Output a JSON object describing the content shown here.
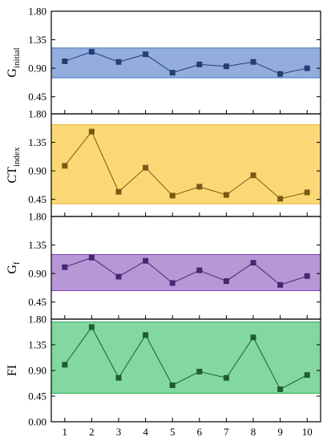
{
  "chart_data": [
    {
      "type": "line",
      "ylabel": "G",
      "ylabel_sub": "initial",
      "ylim": [
        0.45,
        1.8
      ],
      "yticks": [
        "1.80",
        "1.35",
        "0.90",
        "0.45"
      ],
      "band": [
        0.75,
        1.22
      ],
      "band_fill": "#93aede",
      "band_stroke": "#4472c4",
      "marker_color": "#243d72",
      "x": [
        1,
        2,
        3,
        4,
        5,
        6,
        7,
        8,
        9,
        10
      ],
      "values": [
        1.01,
        1.16,
        1.0,
        1.12,
        0.83,
        0.96,
        0.93,
        1.0,
        0.81,
        0.9
      ]
    },
    {
      "type": "line",
      "ylabel": "CT",
      "ylabel_sub": "index",
      "ylim": [
        0.45,
        1.8
      ],
      "yticks": [
        "1.80",
        "1.35",
        "0.90",
        "0.45"
      ],
      "band": [
        0.38,
        1.63
      ],
      "band_fill": "#fbd875",
      "band_stroke": "#e8b638",
      "marker_color": "#7a5a12",
      "x": [
        1,
        2,
        3,
        4,
        5,
        6,
        7,
        8,
        9,
        10
      ],
      "values": [
        0.98,
        1.52,
        0.57,
        0.95,
        0.51,
        0.65,
        0.52,
        0.83,
        0.46,
        0.56
      ]
    },
    {
      "type": "line",
      "ylabel": "G",
      "ylabel_sub": "f",
      "ylim": [
        0.45,
        1.8
      ],
      "yticks": [
        "1.80",
        "1.35",
        "0.90",
        "0.45"
      ],
      "band": [
        0.63,
        1.2
      ],
      "band_fill": "#b797d6",
      "band_stroke": "#7b3fb5",
      "marker_color": "#4b2473",
      "x": [
        1,
        2,
        3,
        4,
        5,
        6,
        7,
        8,
        9,
        10
      ],
      "values": [
        1.0,
        1.15,
        0.85,
        1.1,
        0.75,
        0.95,
        0.78,
        1.07,
        0.72,
        0.86
      ]
    },
    {
      "type": "line",
      "ylabel": "FI",
      "ylabel_sub": "",
      "ylim": [
        0.0,
        1.8
      ],
      "yticks": [
        "1.80",
        "1.35",
        "0.90",
        "0.45",
        "0.00"
      ],
      "xticks": [
        "1",
        "2",
        "3",
        "4",
        "5",
        "6",
        "7",
        "8",
        "9",
        "10"
      ],
      "band": [
        0.5,
        1.75
      ],
      "band_fill": "#82d8a0",
      "band_stroke": "#2ea84f",
      "marker_color": "#1f5c32",
      "x": [
        1,
        2,
        3,
        4,
        5,
        6,
        7,
        8,
        9,
        10
      ],
      "values": [
        1.0,
        1.66,
        0.77,
        1.52,
        0.64,
        0.88,
        0.77,
        1.48,
        0.57,
        0.82
      ]
    }
  ]
}
